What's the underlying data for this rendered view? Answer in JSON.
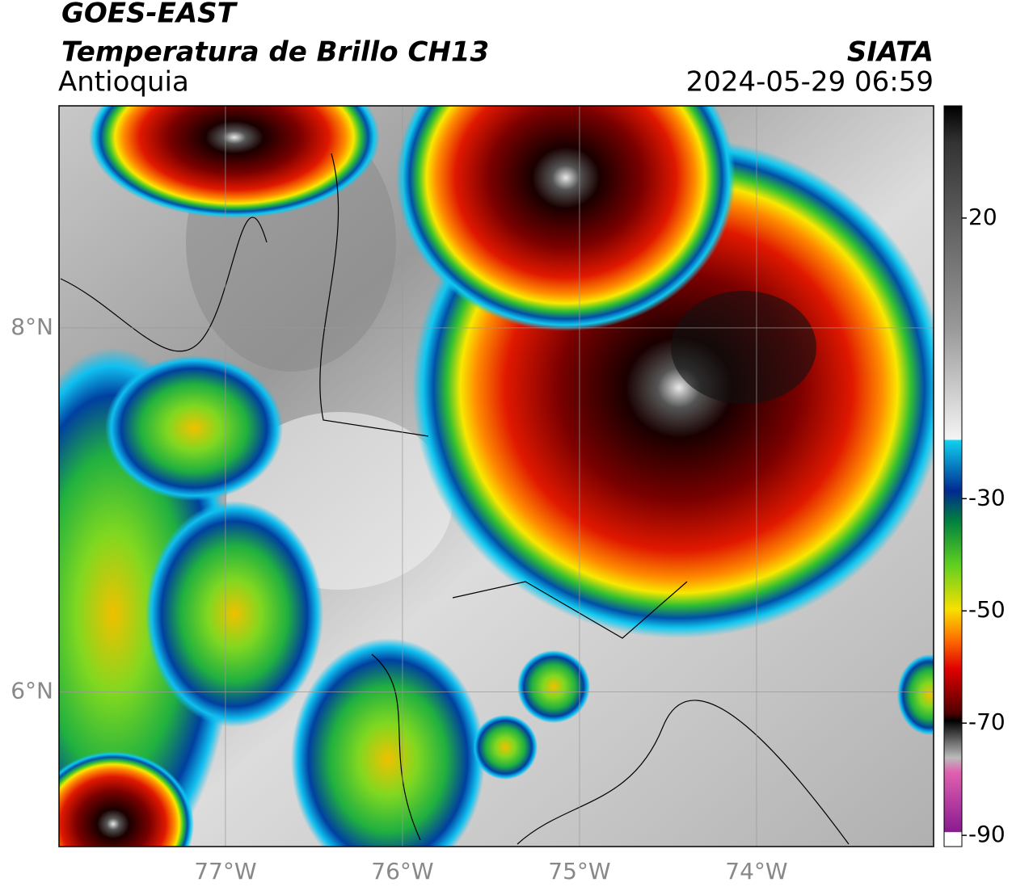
{
  "header": {
    "satellite": "GOES-EAST",
    "product": "Temperatura de Brillo CH13",
    "region": "Antioquia",
    "agency": "SIATA",
    "timestamp": "2024-05-29 06:59"
  },
  "map": {
    "lon_range": [
      -77.94,
      -73.0
    ],
    "lat_range": [
      5.15,
      9.22
    ],
    "lon_ticks": [
      {
        "value": -77,
        "label": "77°W"
      },
      {
        "value": -76,
        "label": "76°W"
      },
      {
        "value": -75,
        "label": "75°W"
      },
      {
        "value": -74,
        "label": "74°W"
      }
    ],
    "lat_ticks": [
      {
        "value": 8,
        "label": "8°N"
      },
      {
        "value": 6,
        "label": "6°N"
      }
    ],
    "grid": true
  },
  "colorbar": {
    "range": [
      -92,
      40
    ],
    "ticks": [
      20,
      -30,
      -50,
      -70,
      -90
    ]
  }
}
